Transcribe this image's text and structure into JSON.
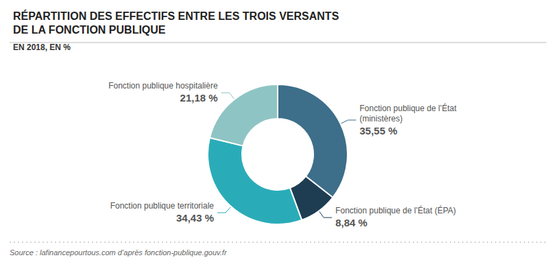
{
  "chart_data": {
    "type": "pie",
    "title": "RÉPARTITION DES EFFECTIFS ENTRE LES TROIS VERSANTS\nDE LA FONCTION PUBLIQUE",
    "subtitle": "EN 2018, EN %",
    "categories": [
      "Fonction publique de l’État\n(ministères)",
      "Fonction publique de l’État (ÉPA)",
      "Fonction publique territoriale",
      "Fonction publique hospitalière"
    ],
    "values": [
      35.55,
      8.84,
      34.43,
      21.18
    ],
    "value_labels": [
      "35,55 %",
      "8,84 %",
      "34,43 %",
      "21,18 %"
    ],
    "colors": [
      "#3d6e8a",
      "#1e3d52",
      "#2aacb8",
      "#8fc4c4"
    ],
    "data_labels": true,
    "annotations": [
      "Source : lafinancepourtous.com d’après fonction-publique.gouv.fr"
    ]
  }
}
